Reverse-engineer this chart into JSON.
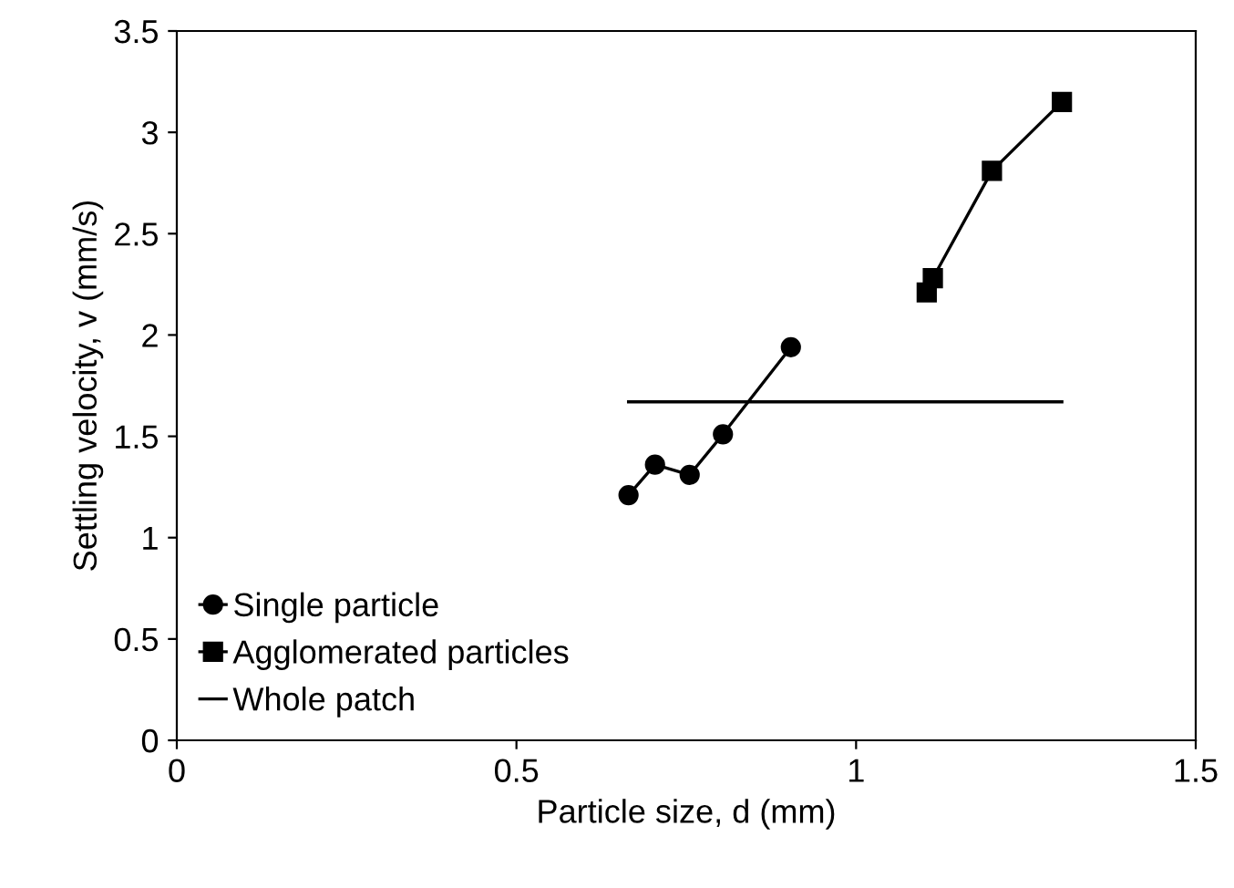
{
  "chart_data": {
    "type": "line",
    "xlabel": "Particle size, d (mm)",
    "ylabel": "Settling velocity, v (mm/s)",
    "xlim": [
      0,
      1.5
    ],
    "xticks": [
      0,
      0.5,
      1,
      1.5
    ],
    "ylim": [
      0,
      3.5
    ],
    "yticks": [
      0,
      0.5,
      1,
      1.5,
      2,
      2.5,
      3,
      3.5
    ],
    "grid": false,
    "legend": "bottom left",
    "series": [
      {
        "name": "Single particle",
        "color": "#000000",
        "marker": "circle",
        "x": [
          0.665,
          0.704,
          0.755,
          0.804,
          0.904
        ],
        "values": [
          1.21,
          1.36,
          1.31,
          1.51,
          1.94
        ]
      },
      {
        "name": "Agglomerated particles",
        "color": "#000000",
        "marker": "square",
        "x": [
          1.104,
          1.113,
          1.2,
          1.303
        ],
        "values": [
          2.21,
          2.28,
          2.81,
          3.15
        ]
      },
      {
        "name": "Whole patch",
        "color": "#000000",
        "marker": "none",
        "x": [
          0.665,
          1.303
        ],
        "values": [
          1.67,
          1.67
        ]
      }
    ]
  }
}
